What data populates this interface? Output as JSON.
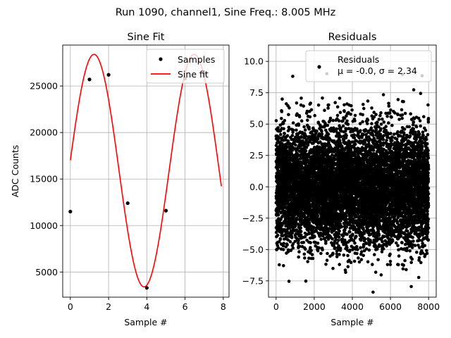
{
  "figure": {
    "suptitle": "Run 1090, channel1, Sine Freq.: 8.005 MHz"
  },
  "chart_data": [
    {
      "type": "line",
      "title": "Sine Fit",
      "xlabel": "Sample #",
      "ylabel": "ADC Counts",
      "xlim": [
        -0.4,
        8.3
      ],
      "ylim": [
        2300,
        29400
      ],
      "grid": true,
      "legend_placement": "top-right",
      "xticks": [
        0,
        2,
        4,
        6,
        8
      ],
      "yticks": [
        5000,
        10000,
        15000,
        20000,
        25000
      ],
      "series": [
        {
          "name": "Samples",
          "kind": "scatter",
          "color": "#000000",
          "x": [
            0,
            1,
            2,
            3,
            4,
            5,
            6,
            7
          ],
          "y": [
            11500,
            25700,
            26200,
            12400,
            3300,
            11600,
            25800,
            26300
          ]
        },
        {
          "name": "Sine fit",
          "kind": "line",
          "color": "#ff0000",
          "model": {
            "amplitude": 12500,
            "offset": 15900,
            "frequency_per_sample": 0.1908,
            "phase": 0.089
          },
          "x_range": [
            0,
            7.9
          ]
        }
      ]
    },
    {
      "type": "scatter",
      "title": "Residuals",
      "xlabel": "Sample #",
      "ylabel": "",
      "xlim": [
        -400,
        8400
      ],
      "ylim": [
        -8.8,
        11.3
      ],
      "grid": true,
      "legend_placement": "top-right",
      "xticks": [
        0,
        2000,
        4000,
        6000,
        8000
      ],
      "yticks": [
        -7.5,
        -5.0,
        -2.5,
        0.0,
        2.5,
        5.0,
        7.5,
        10.0
      ],
      "series": [
        {
          "name": "Residuals",
          "legend_stats": "μ = -0.0, σ = 2.34",
          "color": "#000000",
          "n_points": 8000,
          "mean": 0.0,
          "std": 2.34,
          "x_range": [
            0,
            7999
          ]
        }
      ]
    }
  ]
}
